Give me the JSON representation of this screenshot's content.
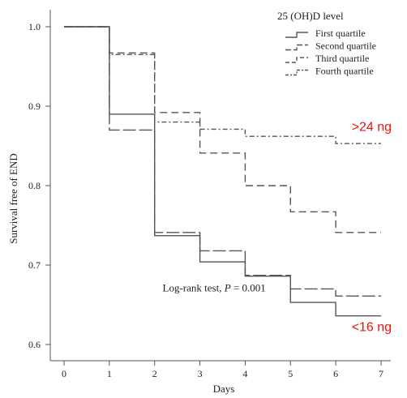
{
  "chart_data": {
    "type": "line",
    "step": true,
    "xlabel": "Days",
    "ylabel": "Survival free of END",
    "xlim": [
      0,
      7
    ],
    "ylim": [
      0.6,
      1.0
    ],
    "x_ticks": [
      0,
      1,
      2,
      3,
      4,
      5,
      6,
      7
    ],
    "y_ticks": [
      "0.6",
      "0.7",
      "0.8",
      "0.9",
      "1.0"
    ],
    "y_tick_values": [
      0.6,
      0.7,
      0.8,
      0.9,
      1.0
    ],
    "grid": false,
    "legend": {
      "title": "25 (OH)D level",
      "placement": "top-right"
    },
    "series": [
      {
        "name": "First quartile",
        "dash": "solid",
        "x": [
          0,
          1,
          1,
          2,
          2,
          3,
          3,
          4,
          4,
          5,
          5,
          6,
          6,
          7
        ],
        "y": [
          1.0,
          1.0,
          0.89,
          0.89,
          0.737,
          0.737,
          0.704,
          0.704,
          0.686,
          0.686,
          0.653,
          0.653,
          0.636,
          0.636
        ]
      },
      {
        "name": "Second quartile",
        "dash": "long-dash",
        "x": [
          0,
          1,
          1,
          2,
          2,
          3,
          3,
          4,
          4,
          5,
          5,
          6,
          6,
          7
        ],
        "y": [
          1.0,
          1.0,
          0.87,
          0.87,
          0.741,
          0.741,
          0.718,
          0.718,
          0.687,
          0.687,
          0.67,
          0.67,
          0.661,
          0.661
        ]
      },
      {
        "name": "Third quartile",
        "dash": "medium-dash",
        "x": [
          0,
          1,
          1,
          2,
          2,
          3,
          3,
          4,
          4,
          5,
          5,
          6,
          6,
          7
        ],
        "y": [
          1.0,
          1.0,
          0.967,
          0.967,
          0.892,
          0.892,
          0.841,
          0.841,
          0.8,
          0.8,
          0.767,
          0.767,
          0.741,
          0.741
        ]
      },
      {
        "name": "Fourth quartile",
        "dash": "dash-dot",
        "x": [
          0,
          1,
          1,
          2,
          2,
          3,
          3,
          4,
          4,
          5,
          5,
          6,
          6,
          7
        ],
        "y": [
          1.0,
          1.0,
          0.965,
          0.965,
          0.88,
          0.88,
          0.871,
          0.871,
          0.862,
          0.862,
          0.862,
          0.862,
          0.853,
          0.853
        ]
      }
    ],
    "annotations": [
      {
        "text": ">24 ng",
        "x": 6.35,
        "y": 0.869,
        "color": "#e8120c"
      },
      {
        "text": "<16 ng",
        "x": 6.35,
        "y": 0.617,
        "color": "#e8120c"
      }
    ],
    "stat_text": {
      "prefix": "Log-rank test, ",
      "variable": "P",
      "suffix": " = 0.001",
      "x": 3.25,
      "y": 0.667
    }
  }
}
